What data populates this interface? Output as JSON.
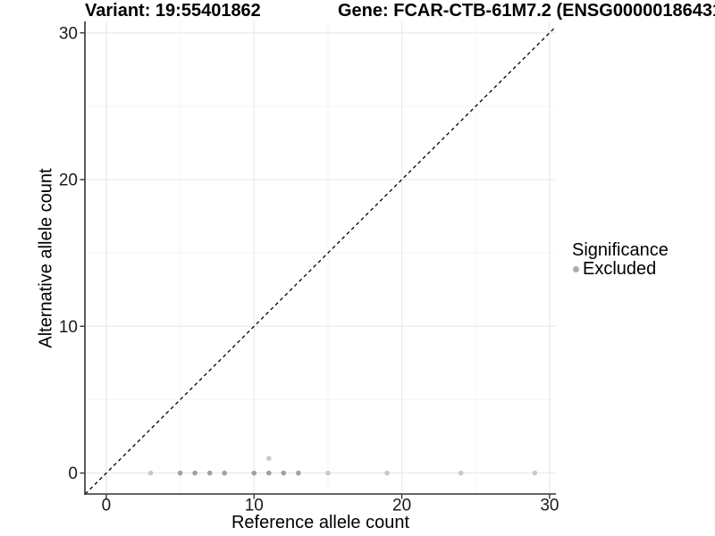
{
  "titles": {
    "variant": "Variant: 19:55401862",
    "gene": "Gene: FCAR-CTB-61M7.2 (ENSG00000186431"
  },
  "axes": {
    "x_label": "Reference allele count",
    "y_label": "Alternative allele count"
  },
  "legend": {
    "title": "Significance",
    "items": [
      {
        "label": "Excluded",
        "key_color": "#adadad"
      }
    ]
  },
  "colors": {
    "point_dark": "#a1a1a1",
    "point_light": "#c8c8c8",
    "grid_major": "#e9e9e9",
    "grid_minor": "#f4f4f4",
    "axis_line": "#333333",
    "tick_text": "#1a1a1a",
    "identity_line": "#000000"
  },
  "chart_data": {
    "type": "scatter",
    "title": "Variant: 19:55401862 | Gene: FCAR-CTB-61M7.2 (ENSG00000186431",
    "xlabel": "Reference allele count",
    "ylabel": "Alternative allele count",
    "xlim": [
      -1.45,
      30.43
    ],
    "ylim": [
      -1.43,
      30.78
    ],
    "x_ticks": [
      0,
      10,
      20,
      30
    ],
    "y_ticks": [
      0,
      10,
      20,
      30
    ],
    "x_minor_ticks": [
      5,
      15,
      25
    ],
    "y_minor_ticks": [
      5,
      15,
      25
    ],
    "grid": true,
    "legend_position": "right",
    "identity_line": {
      "style": "dashed",
      "slope": 1,
      "intercept": 0
    },
    "series": [
      {
        "name": "Excluded",
        "points": [
          {
            "x": 3,
            "y": 0,
            "shade": "light"
          },
          {
            "x": 5,
            "y": 0,
            "shade": "dark"
          },
          {
            "x": 6,
            "y": 0,
            "shade": "dark"
          },
          {
            "x": 7,
            "y": 0,
            "shade": "dark"
          },
          {
            "x": 8,
            "y": 0,
            "shade": "dark"
          },
          {
            "x": 10,
            "y": 0,
            "shade": "dark"
          },
          {
            "x": 11,
            "y": 0,
            "shade": "dark"
          },
          {
            "x": 11,
            "y": 1,
            "shade": "light"
          },
          {
            "x": 12,
            "y": 0,
            "shade": "dark"
          },
          {
            "x": 13,
            "y": 0,
            "shade": "dark"
          },
          {
            "x": 15,
            "y": 0,
            "shade": "light"
          },
          {
            "x": 19,
            "y": 0,
            "shade": "light"
          },
          {
            "x": 24,
            "y": 0,
            "shade": "light"
          },
          {
            "x": 29,
            "y": 0,
            "shade": "light"
          }
        ]
      }
    ]
  }
}
